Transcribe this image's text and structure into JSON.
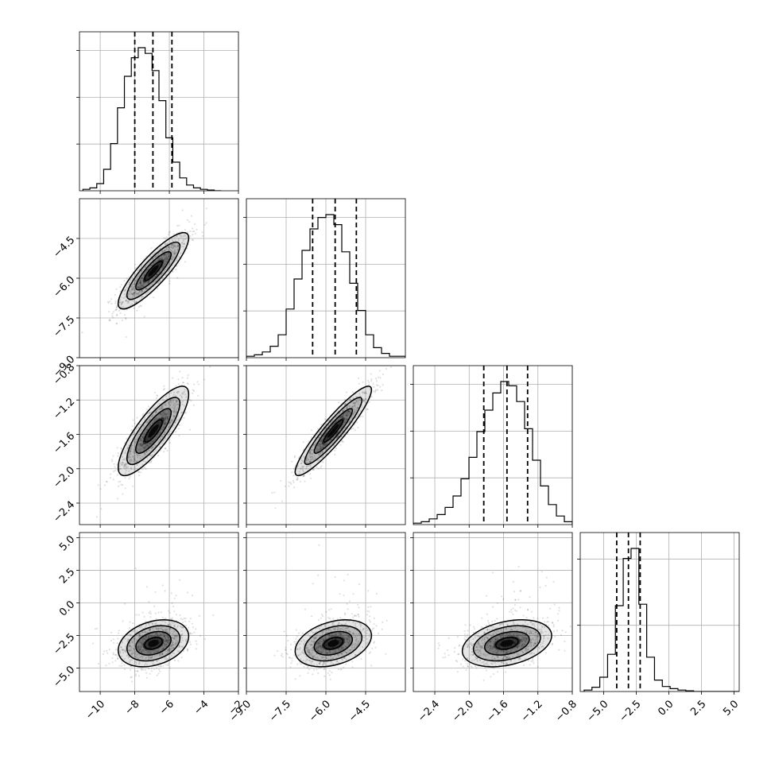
{
  "chart_data": {
    "type": "corner",
    "grid": true,
    "params": [
      {
        "range": [
          -11.2,
          -2.0
        ],
        "ticks": [
          -10,
          -8,
          -6,
          -4,
          -2
        ],
        "tick_labels": [
          "−10",
          "−8",
          "−6",
          "−4",
          "−2"
        ],
        "hist_ticks": 3,
        "mean": -6.92,
        "sd": 1.02,
        "quantiles": [
          -8.0,
          -6.95,
          -5.85
        ],
        "histogram": {
          "edges": [
            -11.0,
            -10.6,
            -10.2,
            -9.8,
            -9.4,
            -9.0,
            -8.6,
            -8.2,
            -7.8,
            -7.4,
            -7.0,
            -6.6,
            -6.2,
            -5.8,
            -5.4,
            -5.0,
            -4.6,
            -4.2,
            -3.8,
            -3.4,
            -3.0
          ],
          "counts": [
            0.01,
            0.02,
            0.05,
            0.15,
            0.33,
            0.58,
            0.8,
            0.93,
            1.0,
            0.96,
            0.84,
            0.63,
            0.37,
            0.2,
            0.09,
            0.04,
            0.02,
            0.01,
            0.005,
            0.0
          ]
        }
      },
      {
        "range": [
          -9.0,
          -3.0
        ],
        "ticks": [
          -9.0,
          -7.5,
          -6.0,
          -4.5
        ],
        "tick_labels": [
          "−9.0",
          "−7.5",
          "−6.0",
          "−4.5"
        ],
        "hist_ticks": 3,
        "mean": -5.72,
        "sd": 0.72,
        "quantiles": [
          -6.5,
          -5.65,
          -4.85
        ],
        "histogram": {
          "edges": [
            -9.0,
            -8.7,
            -8.4,
            -8.1,
            -7.8,
            -7.5,
            -7.2,
            -6.9,
            -6.6,
            -6.3,
            -6.0,
            -5.7,
            -5.4,
            -5.1,
            -4.8,
            -4.5,
            -4.2,
            -3.9,
            -3.6,
            -3.3,
            -3.0
          ],
          "counts": [
            0.01,
            0.02,
            0.04,
            0.08,
            0.16,
            0.34,
            0.55,
            0.75,
            0.9,
            0.98,
            1.0,
            0.93,
            0.74,
            0.52,
            0.33,
            0.16,
            0.07,
            0.03,
            0.01,
            0.01
          ]
        }
      },
      {
        "range": [
          -2.65,
          -0.8
        ],
        "ticks": [
          -2.4,
          -2.0,
          -1.6,
          -1.2,
          -0.8
        ],
        "tick_labels": [
          "−2.4",
          "−2.0",
          "−1.6",
          "−1.2",
          "−0.8"
        ],
        "hist_ticks": 3,
        "mean": -1.56,
        "sd": 0.26,
        "quantiles": [
          -1.83,
          -1.56,
          -1.32
        ],
        "histogram": {
          "edges": [
            -2.65,
            -2.5575,
            -2.465,
            -2.3725,
            -2.28,
            -2.1875,
            -2.095,
            -2.0025,
            -1.91,
            -1.8175,
            -1.725,
            -1.6325,
            -1.54,
            -1.4475,
            -1.355,
            -1.2625,
            -1.17,
            -1.0775,
            -0.985,
            -0.8925,
            -0.8
          ],
          "counts": [
            0.01,
            0.02,
            0.04,
            0.07,
            0.12,
            0.2,
            0.32,
            0.47,
            0.65,
            0.8,
            0.92,
            1.0,
            0.97,
            0.86,
            0.67,
            0.45,
            0.27,
            0.14,
            0.06,
            0.02
          ]
        }
      },
      {
        "range": [
          -6.8,
          5.4
        ],
        "ticks": [
          -5.0,
          -2.5,
          0.0,
          2.5,
          5.0
        ],
        "tick_labels": [
          "−5.0",
          "−2.5",
          "0.0",
          "2.5",
          "5.0"
        ],
        "hist_ticks": 2,
        "mean": -3.1,
        "sd": 0.9,
        "quantiles": [
          -4.0,
          -3.1,
          -2.2
        ],
        "histogram": {
          "edges": [
            -6.5,
            -5.9,
            -5.3,
            -4.7,
            -4.1,
            -3.5,
            -2.9,
            -2.3,
            -1.7,
            -1.1,
            -0.5,
            0.1,
            0.7,
            1.3,
            1.9,
            2.5,
            3.1,
            3.7,
            4.3,
            4.9,
            5.5
          ],
          "counts": [
            0.01,
            0.03,
            0.1,
            0.26,
            0.6,
            0.93,
            1.0,
            0.61,
            0.24,
            0.08,
            0.035,
            0.02,
            0.01,
            0.005,
            0.0,
            0.0,
            0.0,
            0.0,
            0.0,
            0.0
          ]
        }
      }
    ],
    "correlations": [
      {
        "i": 1,
        "j": 0,
        "r": 0.86
      },
      {
        "i": 2,
        "j": 0,
        "r": 0.82
      },
      {
        "i": 2,
        "j": 1,
        "r": 0.92
      },
      {
        "i": 3,
        "j": 0,
        "r": 0.3
      },
      {
        "i": 3,
        "j": 1,
        "r": 0.33
      },
      {
        "i": 3,
        "j": 2,
        "r": 0.33
      }
    ],
    "contour_levels_sigma": [
      0.5,
      1.0,
      1.5,
      2.0
    ],
    "colors": {
      "line": "#000000",
      "points": "#000000",
      "grid": "#b0b0b0"
    }
  }
}
